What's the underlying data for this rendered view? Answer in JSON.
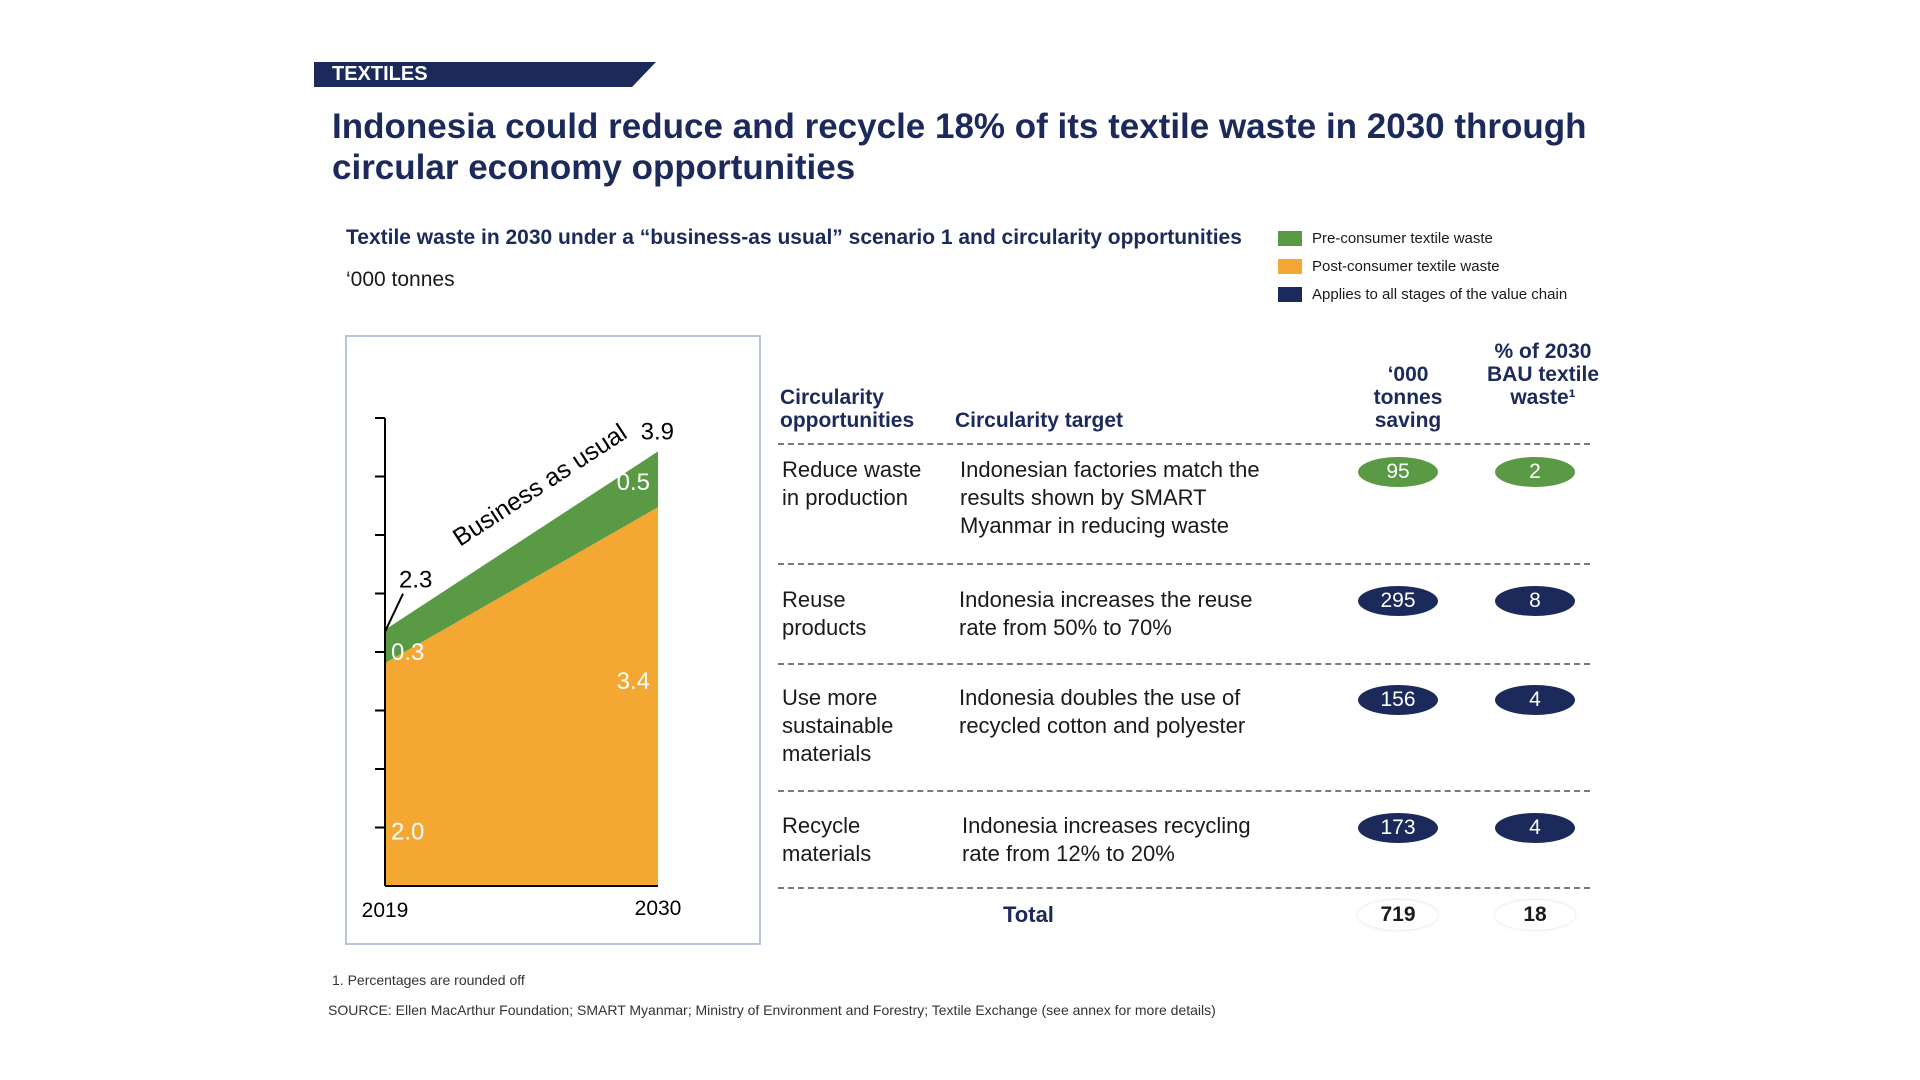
{
  "tag": "TEXTILES",
  "title": "Indonesia could reduce and recycle 18% of its textile waste in 2030 through circular economy opportunities",
  "subtitle": "Textile waste in 2030 under a “business-as usual” scenario 1 and circularity opportunities",
  "unit": "‘000 tonnes",
  "legend": [
    {
      "label": "Pre-consumer textile waste",
      "color": "#5a9a45"
    },
    {
      "label": "Post-consumer textile waste",
      "color": "#f5a733"
    },
    {
      "label": "Applies to all stages of the value chain",
      "color": "#1c2a5b"
    }
  ],
  "chart_data": {
    "type": "area",
    "x": [
      "2019",
      "2030"
    ],
    "series": [
      {
        "name": "Post-consumer textile waste",
        "values": [
          2.0,
          3.4
        ],
        "color": "#f5a733"
      },
      {
        "name": "Pre-consumer textile waste",
        "values": [
          0.3,
          0.5
        ],
        "color": "#5a9a45"
      }
    ],
    "totals": [
      2.3,
      3.9
    ],
    "annotation": "Business as usual",
    "ylim": [
      0,
      4.2
    ],
    "value_labels": {
      "post_2019": "2.0",
      "post_2030": "3.4",
      "pre_2019": "0.3",
      "pre_2030": "0.5",
      "total_2019": "2.3",
      "total_2030": "3.9"
    }
  },
  "table": {
    "headers": {
      "opportunities": "Circularity opportunities",
      "target": "Circularity target",
      "saving": "‘000 tonnes saving",
      "percent": "% of 2030 BAU textile waste¹"
    },
    "rows": [
      {
        "opportunity": "Reduce waste in production",
        "target": "Indonesian factories match the results shown by SMART Myanmar in reducing waste",
        "saving": "95",
        "percent": "2",
        "stage": "pre"
      },
      {
        "opportunity": "Reuse products",
        "target": "Indonesia increases the reuse rate from 50% to 70%",
        "saving": "295",
        "percent": "8",
        "stage": "all"
      },
      {
        "opportunity": "Use more sustainable materials",
        "target": "Indonesia doubles the use of recycled cotton and polyester",
        "saving": "156",
        "percent": "4",
        "stage": "all"
      },
      {
        "opportunity": "Recycle materials",
        "target": "Indonesia increases recycling rate from 12% to 20%",
        "saving": "173",
        "percent": "4",
        "stage": "all"
      }
    ],
    "total": {
      "label": "Total",
      "saving": "719",
      "percent": "18"
    }
  },
  "footnote": "1.   Percentages are rounded off",
  "source": "SOURCE: Ellen MacArthur Foundation; SMART Myanmar; Ministry of Environment and Forestry; Textile Exchange (see annex for more details)"
}
